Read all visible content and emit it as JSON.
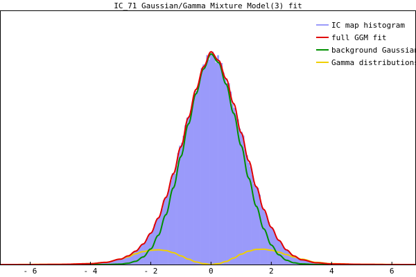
{
  "chart_data": {
    "type": "area",
    "title": "IC_71 Gaussian/Gamma Mixture Model(3) fit",
    "xlabel": "",
    "ylabel": "",
    "xlim": [
      -7,
      6.8
    ],
    "ylim": [
      0,
      1.0
    ],
    "x_ticks": [
      -6,
      -4,
      -2,
      0,
      2,
      4,
      6
    ],
    "x_tick_labels": [
      "- 6",
      "- 4",
      "- 2",
      "0",
      "2",
      "4",
      "6"
    ],
    "grid": false,
    "legend_position": "top-right",
    "series": [
      {
        "name": "IC map histogram",
        "kind": "histogram",
        "color": "#9a9afa",
        "x": [
          -6.0,
          -5.0,
          -4.0,
          -3.5,
          -3.0,
          -2.75,
          -2.5,
          -2.25,
          -2.0,
          -1.75,
          -1.5,
          -1.25,
          -1.0,
          -0.75,
          -0.5,
          -0.25,
          0.0,
          0.25,
          0.5,
          0.75,
          1.0,
          1.25,
          1.5,
          1.75,
          2.0,
          2.25,
          2.5,
          2.75,
          3.0,
          3.5,
          4.0,
          5.0,
          6.0
        ],
        "values": [
          0.0,
          0.001,
          0.004,
          0.01,
          0.025,
          0.04,
          0.062,
          0.095,
          0.145,
          0.215,
          0.31,
          0.42,
          0.545,
          0.68,
          0.81,
          0.915,
          0.985,
          0.945,
          0.86,
          0.745,
          0.61,
          0.48,
          0.36,
          0.255,
          0.172,
          0.112,
          0.068,
          0.04,
          0.022,
          0.008,
          0.003,
          0.001,
          0.0
        ]
      },
      {
        "name": "full GGM fit",
        "kind": "line",
        "color": "#e00000",
        "x": [
          -7.0,
          -6.0,
          -5.0,
          -4.0,
          -3.5,
          -3.0,
          -2.75,
          -2.5,
          -2.25,
          -2.0,
          -1.75,
          -1.5,
          -1.25,
          -1.0,
          -0.75,
          -0.5,
          -0.25,
          0.0,
          0.25,
          0.5,
          0.75,
          1.0,
          1.25,
          1.5,
          1.75,
          2.0,
          2.25,
          2.5,
          2.75,
          3.0,
          3.5,
          4.0,
          5.0,
          6.0,
          6.8
        ],
        "values": [
          0.0,
          0.0,
          0.001,
          0.004,
          0.01,
          0.025,
          0.04,
          0.062,
          0.095,
          0.145,
          0.215,
          0.31,
          0.42,
          0.545,
          0.68,
          0.81,
          0.915,
          0.985,
          0.945,
          0.86,
          0.745,
          0.61,
          0.48,
          0.36,
          0.255,
          0.172,
          0.112,
          0.068,
          0.04,
          0.022,
          0.008,
          0.003,
          0.001,
          0.0,
          0.0
        ]
      },
      {
        "name": "background Gaussian",
        "kind": "line",
        "color": "#009000",
        "x": [
          -7.0,
          -6.0,
          -5.0,
          -4.0,
          -3.5,
          -3.0,
          -2.75,
          -2.5,
          -2.25,
          -2.0,
          -1.75,
          -1.5,
          -1.25,
          -1.0,
          -0.75,
          -0.5,
          -0.25,
          0.0,
          0.25,
          0.5,
          0.75,
          1.0,
          1.25,
          1.5,
          1.75,
          2.0,
          2.25,
          2.5,
          2.75,
          3.0,
          3.5,
          4.0,
          5.0,
          6.0,
          6.8
        ],
        "values": [
          0.0,
          0.0,
          0.0,
          0.0,
          0.0,
          0.002,
          0.006,
          0.015,
          0.035,
          0.072,
          0.135,
          0.23,
          0.355,
          0.5,
          0.65,
          0.79,
          0.905,
          0.975,
          0.935,
          0.835,
          0.7,
          0.55,
          0.4,
          0.27,
          0.165,
          0.09,
          0.045,
          0.02,
          0.008,
          0.003,
          0.0,
          0.0,
          0.0,
          0.0,
          0.0
        ]
      },
      {
        "name": "Gamma distributions",
        "kind": "line",
        "color": "#f0d000",
        "segments": [
          {
            "x": [
              -7.0,
              -5.0,
              -4.0,
              -3.5,
              -3.0,
              -2.75,
              -2.5,
              -2.25,
              -2.0,
              -1.75,
              -1.5,
              -1.25,
              -1.0,
              -0.75,
              -0.5,
              -0.25,
              0.0
            ],
            "values": [
              0.0,
              0.001,
              0.004,
              0.01,
              0.025,
              0.036,
              0.05,
              0.06,
              0.066,
              0.068,
              0.065,
              0.055,
              0.04,
              0.025,
              0.012,
              0.004,
              0.0
            ]
          },
          {
            "x": [
              0.0,
              0.25,
              0.5,
              0.75,
              1.0,
              1.25,
              1.5,
              1.75,
              2.0,
              2.25,
              2.5,
              2.75,
              3.0,
              3.5,
              4.0,
              5.0,
              6.8
            ],
            "values": [
              0.0,
              0.004,
              0.014,
              0.03,
              0.048,
              0.062,
              0.07,
              0.071,
              0.066,
              0.057,
              0.046,
              0.035,
              0.025,
              0.01,
              0.004,
              0.001,
              0.0
            ]
          }
        ]
      }
    ]
  }
}
